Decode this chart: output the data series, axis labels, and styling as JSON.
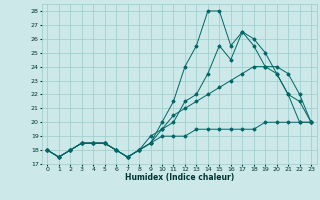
{
  "xlabel": "Humidex (Indice chaleur)",
  "xlim": [
    -0.5,
    23.5
  ],
  "ylim": [
    17,
    28.5
  ],
  "yticks": [
    17,
    18,
    19,
    20,
    21,
    22,
    23,
    24,
    25,
    26,
    27,
    28
  ],
  "xticks": [
    0,
    1,
    2,
    3,
    4,
    5,
    6,
    7,
    8,
    9,
    10,
    11,
    12,
    13,
    14,
    15,
    16,
    17,
    18,
    19,
    20,
    21,
    22,
    23
  ],
  "bg_color": "#cce8e8",
  "grid_color": "#99cccc",
  "line_color": "#006666",
  "lines": [
    {
      "x": [
        0,
        1,
        2,
        3,
        4,
        5,
        6,
        7,
        8,
        9,
        10,
        11,
        12,
        13,
        14,
        15,
        16,
        17,
        18,
        19,
        20,
        21,
        22,
        23
      ],
      "y": [
        18.0,
        17.5,
        18.0,
        18.5,
        18.5,
        18.5,
        18.0,
        17.5,
        18.0,
        18.5,
        20.0,
        21.5,
        24.0,
        25.5,
        28.0,
        28.0,
        25.5,
        26.5,
        25.5,
        24.0,
        23.5,
        22.0,
        20.0,
        20.0
      ]
    },
    {
      "x": [
        0,
        1,
        2,
        3,
        4,
        5,
        6,
        7,
        8,
        9,
        10,
        11,
        12,
        13,
        14,
        15,
        16,
        17,
        18,
        19,
        20,
        21,
        22,
        23
      ],
      "y": [
        18.0,
        17.5,
        18.0,
        18.5,
        18.5,
        18.5,
        18.0,
        17.5,
        18.0,
        19.0,
        19.5,
        20.0,
        21.5,
        22.0,
        23.5,
        25.5,
        24.5,
        26.5,
        26.0,
        25.0,
        23.5,
        22.0,
        21.5,
        20.0
      ]
    },
    {
      "x": [
        0,
        1,
        2,
        3,
        4,
        5,
        6,
        7,
        8,
        9,
        10,
        11,
        12,
        13,
        14,
        15,
        16,
        17,
        18,
        19,
        20,
        21,
        22,
        23
      ],
      "y": [
        18.0,
        17.5,
        18.0,
        18.5,
        18.5,
        18.5,
        18.0,
        17.5,
        18.0,
        18.5,
        19.5,
        20.5,
        21.0,
        21.5,
        22.0,
        22.5,
        23.0,
        23.5,
        24.0,
        24.0,
        24.0,
        23.5,
        22.0,
        20.0
      ]
    },
    {
      "x": [
        0,
        1,
        2,
        3,
        4,
        5,
        6,
        7,
        8,
        9,
        10,
        11,
        12,
        13,
        14,
        15,
        16,
        17,
        18,
        19,
        20,
        21,
        22,
        23
      ],
      "y": [
        18.0,
        17.5,
        18.0,
        18.5,
        18.5,
        18.5,
        18.0,
        17.5,
        18.0,
        18.5,
        19.0,
        19.0,
        19.0,
        19.5,
        19.5,
        19.5,
        19.5,
        19.5,
        19.5,
        20.0,
        20.0,
        20.0,
        20.0,
        20.0
      ]
    }
  ]
}
